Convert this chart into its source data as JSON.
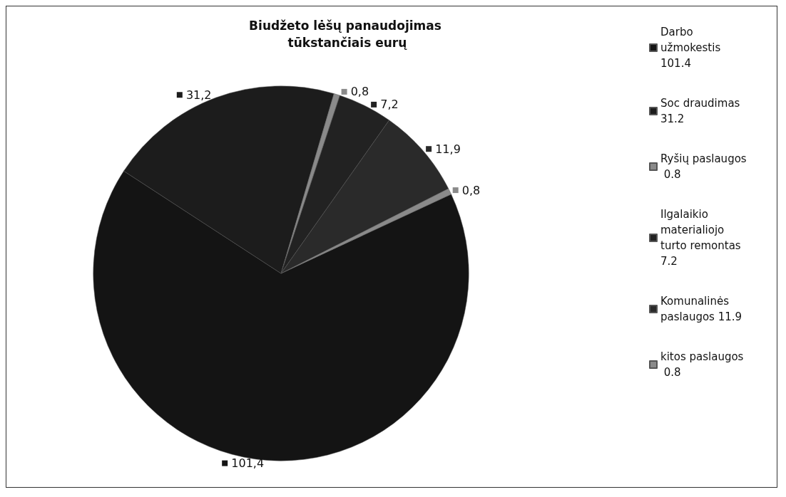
{
  "chart_data": {
    "type": "pie",
    "title": "Biudžeto lėšų panaudojimas tūkstančiais eurų",
    "categories": [
      "Darbo užmokestis 101.4",
      "Soc draudimas 31.2",
      "Ryšių paslaugos 0.8",
      "Ilgalaikio materialiojo turto remontas 7.2",
      "Komunalinės paslaugos 11.9",
      "kitos paslaugos  0.8"
    ],
    "values": [
      101.4,
      31.2,
      0.8,
      7.2,
      11.9,
      0.8
    ],
    "colors": [
      "#141414",
      "#1c1c1c",
      "#8a8a8a",
      "#222222",
      "#2a2a2a",
      "#8a8a8a"
    ],
    "value_labels": [
      "101,4",
      "31,2",
      "0,8",
      "7,2",
      "11,9",
      "0,8"
    ],
    "legend": "right"
  }
}
